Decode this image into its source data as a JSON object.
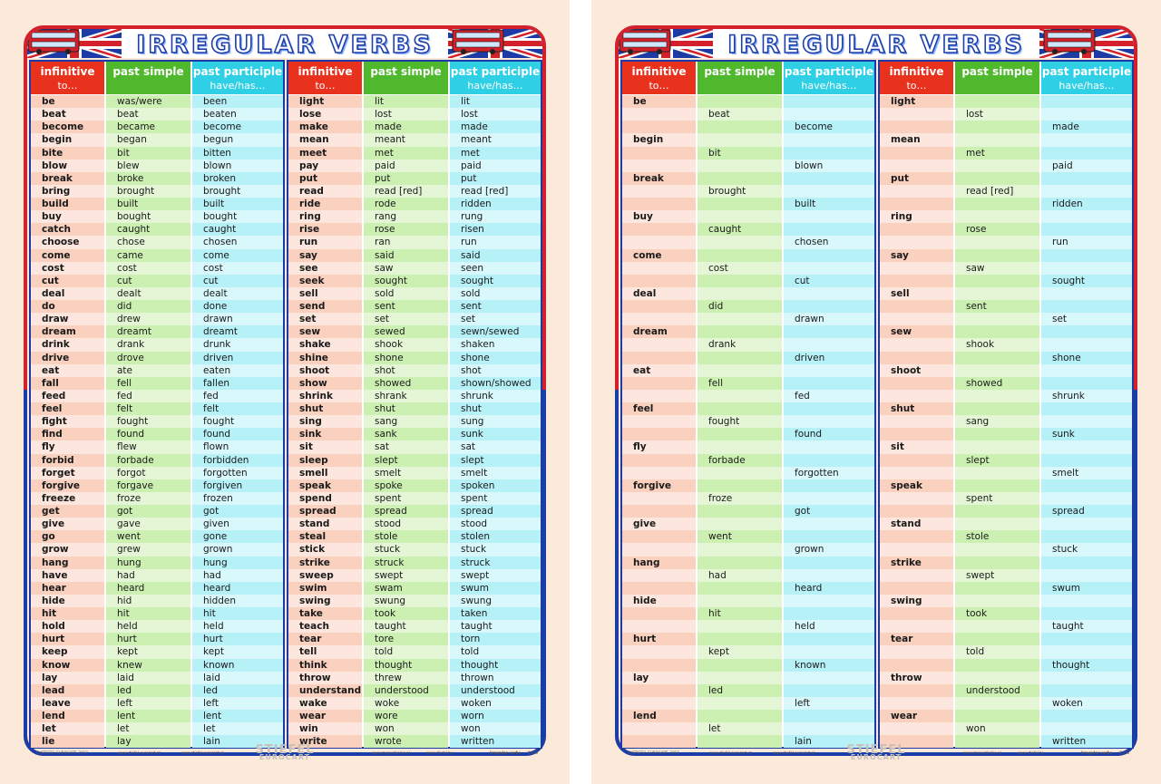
{
  "title": "IRREGULAR VERBS",
  "headers": {
    "infinitive": "infinitive",
    "infinitive_sub": "to…",
    "past_simple": "past simple",
    "past_participle": "past participle",
    "past_participle_sub": "have/has…"
  },
  "footer": {
    "copyright": "© STIEFEL EUROCART, 2017",
    "site_cz": "www.stiefel-eurocart.cz",
    "site_sk": "www.stiefel-eurocart.sk",
    "site_pl": "www.mapyszkolne.pl",
    "site_hu": "www.stiefel.hu",
    "topic": "Irregular verbs",
    "code": "4 252",
    "logo_top": "STIEFEL",
    "logo_bottom": "EUROCART"
  },
  "colors": {
    "red": "#e8321e",
    "green": "#4fb82c",
    "cyan": "#2fd0e6",
    "blue": "#1d3aa5"
  },
  "left_sheet": {
    "columns": [
      [
        [
          "be",
          "was/were",
          "been"
        ],
        [
          "beat",
          "beat",
          "beaten"
        ],
        [
          "become",
          "became",
          "become"
        ],
        [
          "begin",
          "began",
          "begun"
        ],
        [
          "bite",
          "bit",
          "bitten"
        ],
        [
          "blow",
          "blew",
          "blown"
        ],
        [
          "break",
          "broke",
          "broken"
        ],
        [
          "bring",
          "brought",
          "brought"
        ],
        [
          "build",
          "built",
          "built"
        ],
        [
          "buy",
          "bought",
          "bought"
        ],
        [
          "catch",
          "caught",
          "caught"
        ],
        [
          "choose",
          "chose",
          "chosen"
        ],
        [
          "come",
          "came",
          "come"
        ],
        [
          "cost",
          "cost",
          "cost"
        ],
        [
          "cut",
          "cut",
          "cut"
        ],
        [
          "deal",
          "dealt",
          "dealt"
        ],
        [
          "do",
          "did",
          "done"
        ],
        [
          "draw",
          "drew",
          "drawn"
        ],
        [
          "dream",
          "dreamt",
          "dreamt"
        ],
        [
          "drink",
          "drank",
          "drunk"
        ],
        [
          "drive",
          "drove",
          "driven"
        ],
        [
          "eat",
          "ate",
          "eaten"
        ],
        [
          "fall",
          "fell",
          "fallen"
        ],
        [
          "feed",
          "fed",
          "fed"
        ],
        [
          "feel",
          "felt",
          "felt"
        ],
        [
          "fight",
          "fought",
          "fought"
        ],
        [
          "find",
          "found",
          "found"
        ],
        [
          "fly",
          "flew",
          "flown"
        ],
        [
          "forbid",
          "forbade",
          "forbidden"
        ],
        [
          "forget",
          "forgot",
          "forgotten"
        ],
        [
          "forgive",
          "forgave",
          "forgiven"
        ],
        [
          "freeze",
          "froze",
          "frozen"
        ],
        [
          "get",
          "got",
          "got"
        ],
        [
          "give",
          "gave",
          "given"
        ],
        [
          "go",
          "went",
          "gone"
        ],
        [
          "grow",
          "grew",
          "grown"
        ],
        [
          "hang",
          "hung",
          "hung"
        ],
        [
          "have",
          "had",
          "had"
        ],
        [
          "hear",
          "heard",
          "heard"
        ],
        [
          "hide",
          "hid",
          "hidden"
        ],
        [
          "hit",
          "hit",
          "hit"
        ],
        [
          "hold",
          "held",
          "held"
        ],
        [
          "hurt",
          "hurt",
          "hurt"
        ],
        [
          "keep",
          "kept",
          "kept"
        ],
        [
          "know",
          "knew",
          "known"
        ],
        [
          "lay",
          "laid",
          "laid"
        ],
        [
          "lead",
          "led",
          "led"
        ],
        [
          "leave",
          "left",
          "left"
        ],
        [
          "lend",
          "lent",
          "lent"
        ],
        [
          "let",
          "let",
          "let"
        ],
        [
          "lie",
          "lay",
          "lain"
        ]
      ],
      [
        [
          "light",
          "lit",
          "lit"
        ],
        [
          "lose",
          "lost",
          "lost"
        ],
        [
          "make",
          "made",
          "made"
        ],
        [
          "mean",
          "meant",
          "meant"
        ],
        [
          "meet",
          "met",
          "met"
        ],
        [
          "pay",
          "paid",
          "paid"
        ],
        [
          "put",
          "put",
          "put"
        ],
        [
          "read",
          "read [red]",
          "read [red]"
        ],
        [
          "ride",
          "rode",
          "ridden"
        ],
        [
          "ring",
          "rang",
          "rung"
        ],
        [
          "rise",
          "rose",
          "risen"
        ],
        [
          "run",
          "ran",
          "run"
        ],
        [
          "say",
          "said",
          "said"
        ],
        [
          "see",
          "saw",
          "seen"
        ],
        [
          "seek",
          "sought",
          "sought"
        ],
        [
          "sell",
          "sold",
          "sold"
        ],
        [
          "send",
          "sent",
          "sent"
        ],
        [
          "set",
          "set",
          "set"
        ],
        [
          "sew",
          "sewed",
          "sewn/sewed"
        ],
        [
          "shake",
          "shook",
          "shaken"
        ],
        [
          "shine",
          "shone",
          "shone"
        ],
        [
          "shoot",
          "shot",
          "shot"
        ],
        [
          "show",
          "showed",
          "shown/showed"
        ],
        [
          "shrink",
          "shrank",
          "shrunk"
        ],
        [
          "shut",
          "shut",
          "shut"
        ],
        [
          "sing",
          "sang",
          "sung"
        ],
        [
          "sink",
          "sank",
          "sunk"
        ],
        [
          "sit",
          "sat",
          "sat"
        ],
        [
          "sleep",
          "slept",
          "slept"
        ],
        [
          "smell",
          "smelt",
          "smelt"
        ],
        [
          "speak",
          "spoke",
          "spoken"
        ],
        [
          "spend",
          "spent",
          "spent"
        ],
        [
          "spread",
          "spread",
          "spread"
        ],
        [
          "stand",
          "stood",
          "stood"
        ],
        [
          "steal",
          "stole",
          "stolen"
        ],
        [
          "stick",
          "stuck",
          "stuck"
        ],
        [
          "strike",
          "struck",
          "struck"
        ],
        [
          "sweep",
          "swept",
          "swept"
        ],
        [
          "swim",
          "swam",
          "swum"
        ],
        [
          "swing",
          "swung",
          "swung"
        ],
        [
          "take",
          "took",
          "taken"
        ],
        [
          "teach",
          "taught",
          "taught"
        ],
        [
          "tear",
          "tore",
          "torn"
        ],
        [
          "tell",
          "told",
          "told"
        ],
        [
          "think",
          "thought",
          "thought"
        ],
        [
          "throw",
          "threw",
          "thrown"
        ],
        [
          "understand",
          "understood",
          "understood"
        ],
        [
          "wake",
          "woke",
          "woken"
        ],
        [
          "wear",
          "wore",
          "worn"
        ],
        [
          "win",
          "won",
          "won"
        ],
        [
          "write",
          "wrote",
          "written"
        ]
      ]
    ]
  },
  "right_sheet": {
    "columns": [
      [
        [
          "be",
          "",
          ""
        ],
        [
          "",
          "beat",
          ""
        ],
        [
          "",
          "",
          "become"
        ],
        [
          "begin",
          "",
          ""
        ],
        [
          "",
          "bit",
          ""
        ],
        [
          "",
          "",
          "blown"
        ],
        [
          "break",
          "",
          ""
        ],
        [
          "",
          "brought",
          ""
        ],
        [
          "",
          "",
          "built"
        ],
        [
          "buy",
          "",
          ""
        ],
        [
          "",
          "caught",
          ""
        ],
        [
          "",
          "",
          "chosen"
        ],
        [
          "come",
          "",
          ""
        ],
        [
          "",
          "cost",
          ""
        ],
        [
          "",
          "",
          "cut"
        ],
        [
          "deal",
          "",
          ""
        ],
        [
          "",
          "did",
          ""
        ],
        [
          "",
          "",
          "drawn"
        ],
        [
          "dream",
          "",
          ""
        ],
        [
          "",
          "drank",
          ""
        ],
        [
          "",
          "",
          "driven"
        ],
        [
          "eat",
          "",
          ""
        ],
        [
          "",
          "fell",
          ""
        ],
        [
          "",
          "",
          "fed"
        ],
        [
          "feel",
          "",
          ""
        ],
        [
          "",
          "fought",
          ""
        ],
        [
          "",
          "",
          "found"
        ],
        [
          "fly",
          "",
          ""
        ],
        [
          "",
          "forbade",
          ""
        ],
        [
          "",
          "",
          "forgotten"
        ],
        [
          "forgive",
          "",
          ""
        ],
        [
          "",
          "froze",
          ""
        ],
        [
          "",
          "",
          "got"
        ],
        [
          "give",
          "",
          ""
        ],
        [
          "",
          "went",
          ""
        ],
        [
          "",
          "",
          "grown"
        ],
        [
          "hang",
          "",
          ""
        ],
        [
          "",
          "had",
          ""
        ],
        [
          "",
          "",
          "heard"
        ],
        [
          "hide",
          "",
          ""
        ],
        [
          "",
          "hit",
          ""
        ],
        [
          "",
          "",
          "held"
        ],
        [
          "hurt",
          "",
          ""
        ],
        [
          "",
          "kept",
          ""
        ],
        [
          "",
          "",
          "known"
        ],
        [
          "lay",
          "",
          ""
        ],
        [
          "",
          "led",
          ""
        ],
        [
          "",
          "",
          "left"
        ],
        [
          "lend",
          "",
          ""
        ],
        [
          "",
          "let",
          ""
        ],
        [
          "",
          "",
          "lain"
        ]
      ],
      [
        [
          "light",
          "",
          ""
        ],
        [
          "",
          "lost",
          ""
        ],
        [
          "",
          "",
          "made"
        ],
        [
          "mean",
          "",
          ""
        ],
        [
          "",
          "met",
          ""
        ],
        [
          "",
          "",
          "paid"
        ],
        [
          "put",
          "",
          ""
        ],
        [
          "",
          "read [red]",
          ""
        ],
        [
          "",
          "",
          "ridden"
        ],
        [
          "ring",
          "",
          ""
        ],
        [
          "",
          "rose",
          ""
        ],
        [
          "",
          "",
          "run"
        ],
        [
          "say",
          "",
          ""
        ],
        [
          "",
          "saw",
          ""
        ],
        [
          "",
          "",
          "sought"
        ],
        [
          "sell",
          "",
          ""
        ],
        [
          "",
          "sent",
          ""
        ],
        [
          "",
          "",
          "set"
        ],
        [
          "sew",
          "",
          ""
        ],
        [
          "",
          "shook",
          ""
        ],
        [
          "",
          "",
          "shone"
        ],
        [
          "shoot",
          "",
          ""
        ],
        [
          "",
          "showed",
          ""
        ],
        [
          "",
          "",
          "shrunk"
        ],
        [
          "shut",
          "",
          ""
        ],
        [
          "",
          "sang",
          ""
        ],
        [
          "",
          "",
          "sunk"
        ],
        [
          "sit",
          "",
          ""
        ],
        [
          "",
          "slept",
          ""
        ],
        [
          "",
          "",
          "smelt"
        ],
        [
          "speak",
          "",
          ""
        ],
        [
          "",
          "spent",
          ""
        ],
        [
          "",
          "",
          "spread"
        ],
        [
          "stand",
          "",
          ""
        ],
        [
          "",
          "stole",
          ""
        ],
        [
          "",
          "",
          "stuck"
        ],
        [
          "strike",
          "",
          ""
        ],
        [
          "",
          "swept",
          ""
        ],
        [
          "",
          "",
          "swum"
        ],
        [
          "swing",
          "",
          ""
        ],
        [
          "",
          "took",
          ""
        ],
        [
          "",
          "",
          "taught"
        ],
        [
          "tear",
          "",
          ""
        ],
        [
          "",
          "told",
          ""
        ],
        [
          "",
          "",
          "thought"
        ],
        [
          "throw",
          "",
          ""
        ],
        [
          "",
          "understood",
          ""
        ],
        [
          "",
          "",
          "woken"
        ],
        [
          "wear",
          "",
          ""
        ],
        [
          "",
          "won",
          ""
        ],
        [
          "",
          "",
          "written"
        ]
      ]
    ]
  }
}
